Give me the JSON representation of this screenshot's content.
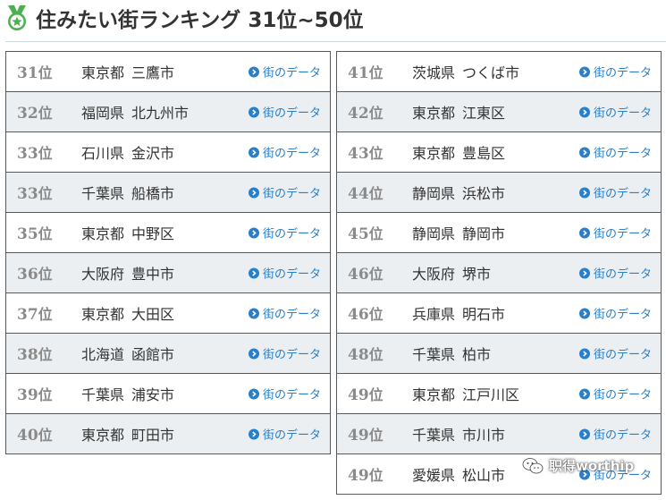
{
  "header": {
    "title": "住みたい街ランキング 31位~50位",
    "icon": "medal-star-icon",
    "accent": "#4caf50"
  },
  "link_label": "街のデータ",
  "link_color": "#2a7fc6",
  "left_column": [
    {
      "rank": "31",
      "unit": "位",
      "pref": "東京都",
      "city": "三鷹市"
    },
    {
      "rank": "32",
      "unit": "位",
      "pref": "福岡県",
      "city": "北九州市"
    },
    {
      "rank": "33",
      "unit": "位",
      "pref": "石川県",
      "city": "金沢市"
    },
    {
      "rank": "33",
      "unit": "位",
      "pref": "千葉県",
      "city": "船橋市"
    },
    {
      "rank": "35",
      "unit": "位",
      "pref": "東京都",
      "city": "中野区"
    },
    {
      "rank": "36",
      "unit": "位",
      "pref": "大阪府",
      "city": "豊中市"
    },
    {
      "rank": "37",
      "unit": "位",
      "pref": "東京都",
      "city": "大田区"
    },
    {
      "rank": "38",
      "unit": "位",
      "pref": "北海道",
      "city": "函館市"
    },
    {
      "rank": "39",
      "unit": "位",
      "pref": "千葉県",
      "city": "浦安市"
    },
    {
      "rank": "40",
      "unit": "位",
      "pref": "東京都",
      "city": "町田市"
    }
  ],
  "right_column": [
    {
      "rank": "41",
      "unit": "位",
      "pref": "茨城県",
      "city": "つくば市"
    },
    {
      "rank": "42",
      "unit": "位",
      "pref": "東京都",
      "city": "江東区"
    },
    {
      "rank": "43",
      "unit": "位",
      "pref": "東京都",
      "city": "豊島区"
    },
    {
      "rank": "44",
      "unit": "位",
      "pref": "静岡県",
      "city": "浜松市"
    },
    {
      "rank": "45",
      "unit": "位",
      "pref": "静岡県",
      "city": "静岡市"
    },
    {
      "rank": "46",
      "unit": "位",
      "pref": "大阪府",
      "city": "堺市"
    },
    {
      "rank": "46",
      "unit": "位",
      "pref": "兵庫県",
      "city": "明石市"
    },
    {
      "rank": "48",
      "unit": "位",
      "pref": "千葉県",
      "city": "柏市"
    },
    {
      "rank": "49",
      "unit": "位",
      "pref": "東京都",
      "city": "江戸川区"
    },
    {
      "rank": "49",
      "unit": "位",
      "pref": "千葉県",
      "city": "市川市"
    },
    {
      "rank": "49",
      "unit": "位",
      "pref": "愛媛県",
      "city": "松山市"
    }
  ],
  "watermark": {
    "icon": "wechat-icon",
    "text": "职得worthip"
  }
}
